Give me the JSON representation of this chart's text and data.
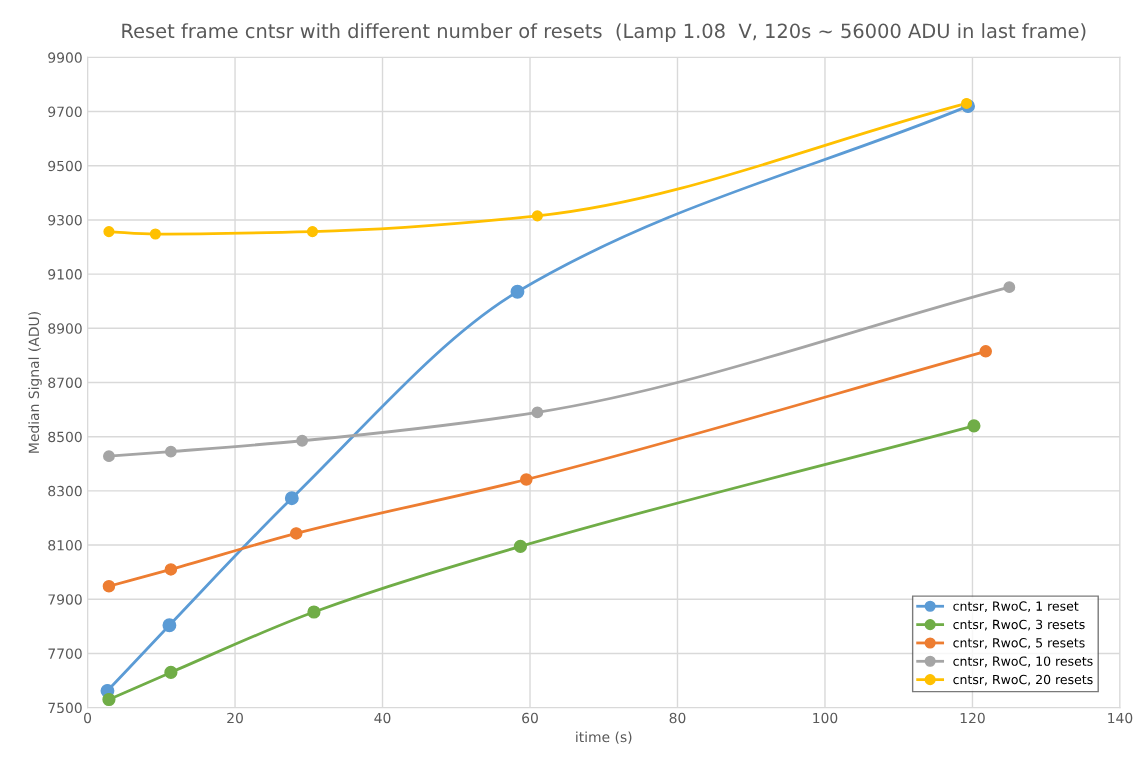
{
  "chart_data": {
    "type": "line",
    "title": "Reset frame cntsr with different number of resets  (Lamp 1.08  V, 120s ~ 56000 ADU in last frame)",
    "xlabel": "itime (s)",
    "ylabel": "Median Signal (ADU)",
    "xlim": [
      0,
      140
    ],
    "xticks": [
      0,
      20,
      40,
      60,
      80,
      100,
      120,
      140
    ],
    "ylim": [
      7500,
      9900
    ],
    "yticks": [
      7500,
      7700,
      7900,
      8100,
      8300,
      8500,
      8700,
      8900,
      9100,
      9300,
      9500,
      9700,
      9900
    ],
    "grid": true,
    "legend": "bottom right",
    "marker": "circle",
    "line_style": "solid",
    "series": [
      {
        "name": "cntsr, RwoC, 1 reset",
        "color": "#5b9bd5",
        "x": [
          2.7,
          11.1,
          27.7,
          58.3,
          119.4
        ],
        "values": [
          7562,
          7804,
          8273,
          9035,
          9720
        ]
      },
      {
        "name": "cntsr, RwoC, 3 resets",
        "color": "#70ad47",
        "x": [
          2.9,
          11.3,
          30.7,
          58.7,
          120.2
        ],
        "values": [
          7530,
          7630,
          7853,
          8095,
          8540
        ]
      },
      {
        "name": "cntsr, RwoC, 5 resets",
        "color": "#ed7d31",
        "x": [
          2.9,
          11.3,
          28.3,
          59.5,
          121.8
        ],
        "values": [
          7948,
          8010,
          8143,
          8342,
          8815
        ]
      },
      {
        "name": "cntsr, RwoC, 10 resets",
        "color": "#a5a5a5",
        "x": [
          2.9,
          11.3,
          29.1,
          61.0,
          125.0
        ],
        "values": [
          8428,
          8445,
          8485,
          8590,
          9052
        ]
      },
      {
        "name": "cntsr, RwoC, 20 resets",
        "color": "#ffc000",
        "x": [
          2.9,
          9.2,
          30.5,
          61.0,
          119.2
        ],
        "values": [
          9257,
          9248,
          9257,
          9315,
          9730
        ]
      }
    ]
  }
}
